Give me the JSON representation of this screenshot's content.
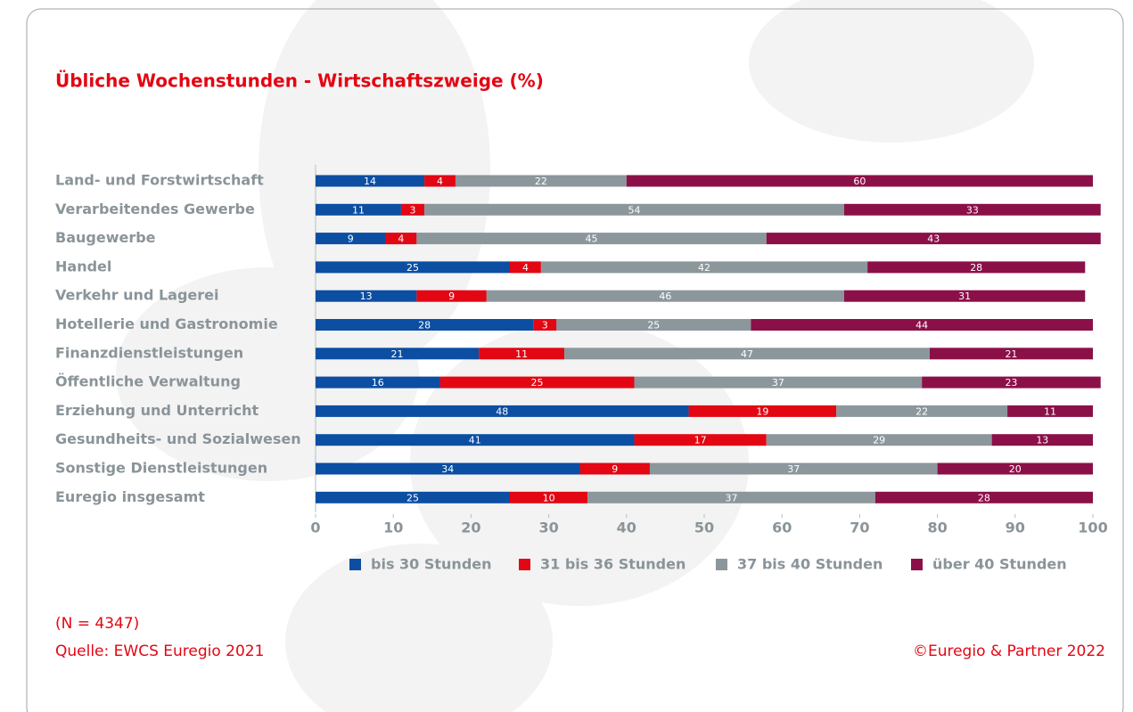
{
  "chart_data": {
    "type": "stacked-bar-horizontal",
    "title": "Übliche Wochenstunden - Wirtschaftszweige (%)",
    "categories": [
      "Land- und Forstwirtschaft",
      "Verarbeitendes Gewerbe",
      "Baugewerbe",
      "Handel",
      "Verkehr und Lagerei",
      "Hotellerie und Gastronomie",
      "Finanzdienstleistungen",
      "Öffentliche Verwaltung",
      "Erziehung und Unterricht",
      "Gesundheits- und Sozialwesen",
      "Sonstige Dienstleistungen",
      "Euregio insgesamt"
    ],
    "series": [
      {
        "name": "bis 30 Stunden",
        "color": "#0b4ea2",
        "values": [
          14,
          11,
          9,
          25,
          13,
          28,
          21,
          16,
          48,
          41,
          34,
          25
        ]
      },
      {
        "name": "31 bis 36 Stunden",
        "color": "#e30613",
        "values": [
          4,
          3,
          4,
          4,
          9,
          3,
          11,
          25,
          19,
          17,
          9,
          10
        ]
      },
      {
        "name": "37 bis 40 Stunden",
        "color": "#8c979c",
        "values": [
          22,
          54,
          45,
          42,
          46,
          25,
          47,
          37,
          22,
          29,
          37,
          37
        ]
      },
      {
        "name": "über 40 Stunden",
        "color": "#8b1048",
        "values": [
          60,
          33,
          43,
          28,
          31,
          44,
          21,
          23,
          11,
          13,
          20,
          28
        ]
      }
    ],
    "xlim": [
      0,
      100
    ],
    "xticks": [
      0,
      10,
      20,
      30,
      40,
      50,
      60,
      70,
      80,
      90,
      100
    ],
    "note": "(N = 4347)",
    "source": "Quelle: EWCS Euregio 2021",
    "copyright": "©Euregio & Partner 2022"
  }
}
